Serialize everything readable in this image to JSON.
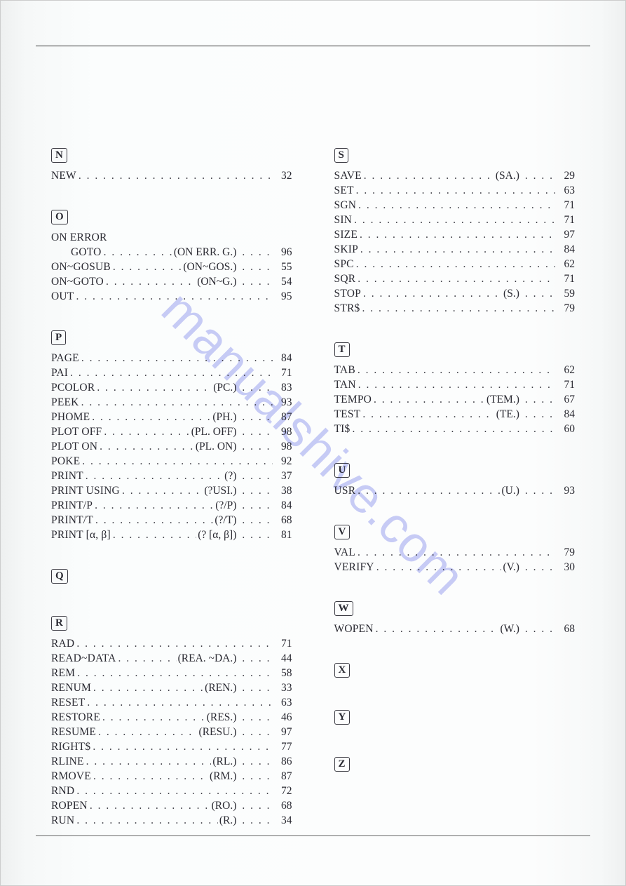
{
  "watermark": "manualshive.com",
  "columns": [
    [
      {
        "letter": "N",
        "entries": [
          {
            "cmd": "NEW",
            "page": "32"
          }
        ]
      },
      {
        "letter": "O",
        "entries": [
          {
            "cmd": "ON ERROR",
            "nopage": true
          },
          {
            "cmd": "GOTO",
            "indent": true,
            "abbr": "(ON ERR. G.)",
            "page": "96"
          },
          {
            "cmd": "ON~GOSUB",
            "abbr": "(ON~GOS.)",
            "page": "55"
          },
          {
            "cmd": "ON~GOTO",
            "abbr": "(ON~G.)",
            "page": "54"
          },
          {
            "cmd": "OUT",
            "page": "95"
          }
        ]
      },
      {
        "letter": "P",
        "entries": [
          {
            "cmd": "PAGE",
            "page": "84"
          },
          {
            "cmd": "PAI",
            "page": "71"
          },
          {
            "cmd": "PCOLOR",
            "abbr": "(PC.)",
            "page": "83"
          },
          {
            "cmd": "PEEK",
            "page": "93"
          },
          {
            "cmd": "PHOME",
            "abbr": "(PH.)",
            "page": "87"
          },
          {
            "cmd": "PLOT OFF",
            "abbr": "(PL. OFF)",
            "page": "98"
          },
          {
            "cmd": "PLOT ON",
            "abbr": "(PL. ON)",
            "page": "98"
          },
          {
            "cmd": "POKE",
            "page": "92"
          },
          {
            "cmd": "PRINT",
            "abbr": "(?)",
            "page": "37"
          },
          {
            "cmd": "PRINT USING",
            "abbr": "(?USI.)",
            "page": "38"
          },
          {
            "cmd": "PRINT/P",
            "abbr": "(?/P)",
            "page": "84"
          },
          {
            "cmd": "PRINT/T",
            "abbr": "(?/T)",
            "page": "68"
          },
          {
            "cmd": "PRINT [α, β]",
            "abbr": "(? [α, β])",
            "page": "81"
          }
        ]
      },
      {
        "letter": "Q",
        "entries": []
      },
      {
        "letter": "R",
        "entries": [
          {
            "cmd": "RAD",
            "page": "71"
          },
          {
            "cmd": "READ~DATA",
            "abbr": "(REA. ~DA.)",
            "page": "44"
          },
          {
            "cmd": "REM",
            "page": "58"
          },
          {
            "cmd": "RENUM",
            "abbr": "(REN.)",
            "page": "33"
          },
          {
            "cmd": "RESET",
            "page": "63"
          },
          {
            "cmd": "RESTORE",
            "abbr": "(RES.)",
            "page": "46"
          },
          {
            "cmd": "RESUME",
            "abbr": "(RESU.)",
            "page": "97"
          },
          {
            "cmd": "RIGHT$",
            "page": "77"
          },
          {
            "cmd": "RLINE",
            "abbr": "(RL.)",
            "page": "86"
          },
          {
            "cmd": "RMOVE",
            "abbr": "(RM.)",
            "page": "87"
          },
          {
            "cmd": "RND",
            "page": "72"
          },
          {
            "cmd": "ROPEN",
            "abbr": "(RO.)",
            "page": "68"
          },
          {
            "cmd": "RUN",
            "abbr": "(R.)",
            "page": "34"
          }
        ]
      }
    ],
    [
      {
        "letter": "S",
        "entries": [
          {
            "cmd": "SAVE",
            "abbr": "(SA.)",
            "page": "29"
          },
          {
            "cmd": "SET",
            "page": "63"
          },
          {
            "cmd": "SGN",
            "page": "71"
          },
          {
            "cmd": "SIN",
            "page": "71"
          },
          {
            "cmd": "SIZE",
            "page": "97"
          },
          {
            "cmd": "SKIP",
            "page": "84"
          },
          {
            "cmd": "SPC",
            "page": "62"
          },
          {
            "cmd": "SQR",
            "page": "71"
          },
          {
            "cmd": "STOP",
            "abbr": "(S.)",
            "page": "59"
          },
          {
            "cmd": "STR$",
            "page": "79"
          }
        ]
      },
      {
        "letter": "T",
        "entries": [
          {
            "cmd": "TAB",
            "page": "62"
          },
          {
            "cmd": "TAN",
            "page": "71"
          },
          {
            "cmd": "TEMPO",
            "abbr": "(TEM.)",
            "page": "67"
          },
          {
            "cmd": "TEST",
            "abbr": "(TE.)",
            "page": "84"
          },
          {
            "cmd": "TI$",
            "page": "60"
          }
        ]
      },
      {
        "letter": "U",
        "entries": [
          {
            "cmd": "USR",
            "abbr": "(U.)",
            "page": "93"
          }
        ]
      },
      {
        "letter": "V",
        "entries": [
          {
            "cmd": "VAL",
            "page": "79"
          },
          {
            "cmd": "VERIFY",
            "abbr": "(V.)",
            "page": "30"
          }
        ]
      },
      {
        "letter": "W",
        "entries": [
          {
            "cmd": "WOPEN",
            "abbr": "(W.)",
            "page": "68"
          }
        ]
      },
      {
        "letter": "X",
        "entries": []
      },
      {
        "letter": "Y",
        "entries": []
      },
      {
        "letter": "Z",
        "entries": []
      }
    ]
  ]
}
